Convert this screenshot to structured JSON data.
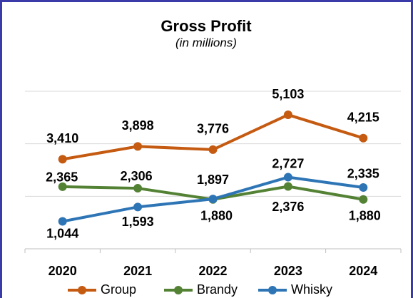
{
  "chart_data": {
    "type": "line",
    "title": "Gross Profit",
    "subtitle": "(in millions)",
    "categories": [
      "2020",
      "2021",
      "2022",
      "2023",
      "2024"
    ],
    "series": [
      {
        "name": "Group",
        "color": "#c55a11",
        "values": [
          3410,
          3898,
          3776,
          5103,
          4215
        ],
        "value_labels": [
          "3,410",
          "3,898",
          "3,776",
          "5,103",
          "4,215"
        ]
      },
      {
        "name": "Brandy",
        "color": "#548235",
        "values": [
          2365,
          2306,
          1880,
          2376,
          1880
        ],
        "value_labels": [
          "2,365",
          "2,306",
          "1,880",
          "2,376",
          "1,880"
        ]
      },
      {
        "name": "Whisky",
        "color": "#2e75b6",
        "values": [
          1044,
          1593,
          1897,
          2727,
          2335
        ],
        "value_labels": [
          "1,044",
          "1,593",
          "1,897",
          "2,727",
          "2,335"
        ]
      }
    ],
    "ylim": [
      0,
      6000
    ],
    "yticks": [
      0,
      2000,
      4000,
      6000
    ],
    "grid": true,
    "legend": "bottom"
  }
}
